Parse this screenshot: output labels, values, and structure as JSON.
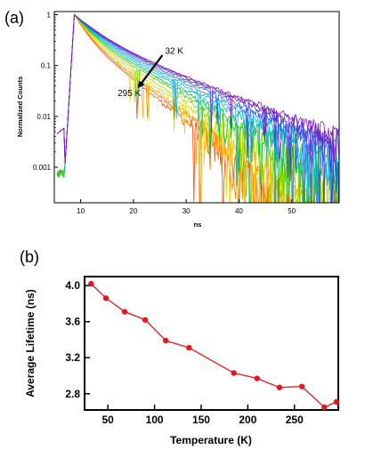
{
  "chart_data": [
    {
      "type": "line",
      "panel_label": "(a)",
      "xlabel": "ns",
      "ylabel": "Normalized Counts",
      "yscale": "log",
      "xlim": [
        5,
        59
      ],
      "ylim": [
        0.0002,
        1.15
      ],
      "x_ticks": [
        10,
        20,
        30,
        40,
        50
      ],
      "y_ticks": [
        0.001,
        0.01,
        0.1,
        1
      ],
      "y_tick_labels": [
        "0.001",
        "0.01",
        "0.1",
        "1"
      ],
      "grid": false,
      "legend": "none",
      "annotations": [
        {
          "text": "32 K",
          "x": 26,
          "y": 0.17
        },
        {
          "text": "295 K",
          "x": 17,
          "y": 0.025
        }
      ],
      "arrow": {
        "from": [
          25.5,
          0.16
        ],
        "to": [
          21,
          0.038
        ],
        "direction": "increasing temperature"
      },
      "series_colors": [
        "#ff4500",
        "#ff7a00",
        "#ffb000",
        "#e8d800",
        "#a8e000",
        "#4ed000",
        "#00c040",
        "#00c8a0",
        "#00b8e8",
        "#1a8ee8",
        "#2f5fe0",
        "#4836d8",
        "#6a22c8",
        "#8a12c0"
      ],
      "decay_times_ns": [
        3.4,
        3.6,
        3.8,
        4.1,
        4.4,
        4.7,
        5.0,
        5.3,
        5.6,
        5.9,
        6.2,
        6.5,
        6.7,
        6.9
      ],
      "rise": {
        "onset_ns": 7.0,
        "peak_ns": 8.8,
        "peak_value": 1.0
      }
    },
    {
      "type": "line",
      "panel_label": "(b)",
      "xlabel": "Temperature (K)",
      "ylabel": "Average Lifetime (ns)",
      "xlim": [
        25,
        297
      ],
      "ylim": [
        2.62,
        4.1
      ],
      "x_ticks": [
        50,
        100,
        150,
        200,
        250
      ],
      "y_ticks": [
        2.8,
        3.2,
        3.6,
        4.0
      ],
      "y_tick_labels": [
        "2.8",
        "3.2",
        "3.6",
        "4.0"
      ],
      "grid": false,
      "legend": "none",
      "color": "#e8141e",
      "x": [
        32,
        48,
        68,
        90,
        112,
        137,
        185,
        210,
        234,
        258,
        282,
        295
      ],
      "y": [
        4.02,
        3.86,
        3.71,
        3.62,
        3.39,
        3.31,
        3.03,
        2.97,
        2.87,
        2.88,
        2.65,
        2.71
      ]
    }
  ]
}
